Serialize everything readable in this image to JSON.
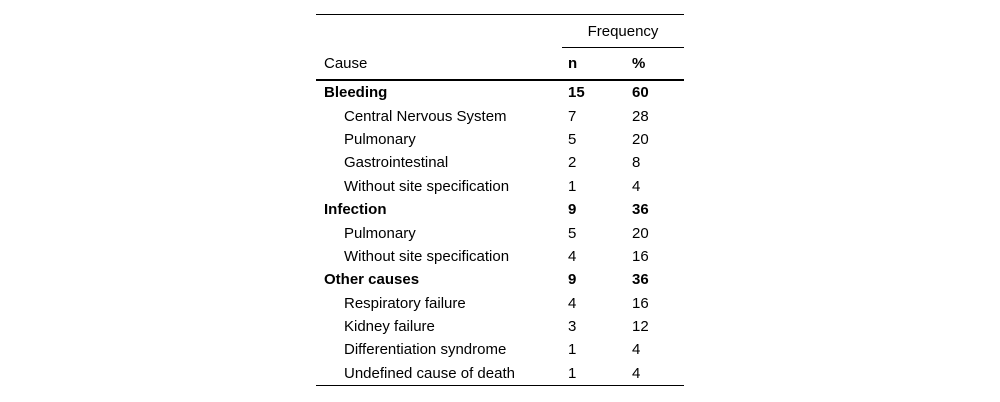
{
  "table": {
    "frequency_header": "Frequency",
    "columns": {
      "cause": "Cause",
      "n": "n",
      "pct": "%"
    },
    "text_color": "#000000",
    "background_color": "#ffffff",
    "rows": [
      {
        "label": "Bleeding",
        "n": "15",
        "pct": "60",
        "is_category": true
      },
      {
        "label": "Central Nervous System",
        "n": "7",
        "pct": "28",
        "is_category": false
      },
      {
        "label": "Pulmonary",
        "n": "5",
        "pct": "20",
        "is_category": false
      },
      {
        "label": "Gastrointestinal",
        "n": "2",
        "pct": "8",
        "is_category": false
      },
      {
        "label": "Without site specification",
        "n": "1",
        "pct": "4",
        "is_category": false
      },
      {
        "label": "Infection",
        "n": "9",
        "pct": "36",
        "is_category": true
      },
      {
        "label": "Pulmonary",
        "n": "5",
        "pct": "20",
        "is_category": false
      },
      {
        "label": "Without site specification",
        "n": "4",
        "pct": "16",
        "is_category": false
      },
      {
        "label": "Other causes",
        "n": "9",
        "pct": "36",
        "is_category": true
      },
      {
        "label": "Respiratory failure",
        "n": "4",
        "pct": "16",
        "is_category": false
      },
      {
        "label": "Kidney failure",
        "n": "3",
        "pct": "12",
        "is_category": false
      },
      {
        "label": "Differentiation syndrome",
        "n": "1",
        "pct": "4",
        "is_category": false
      },
      {
        "label": "Undefined cause of death",
        "n": "1",
        "pct": "4",
        "is_category": false
      }
    ]
  }
}
